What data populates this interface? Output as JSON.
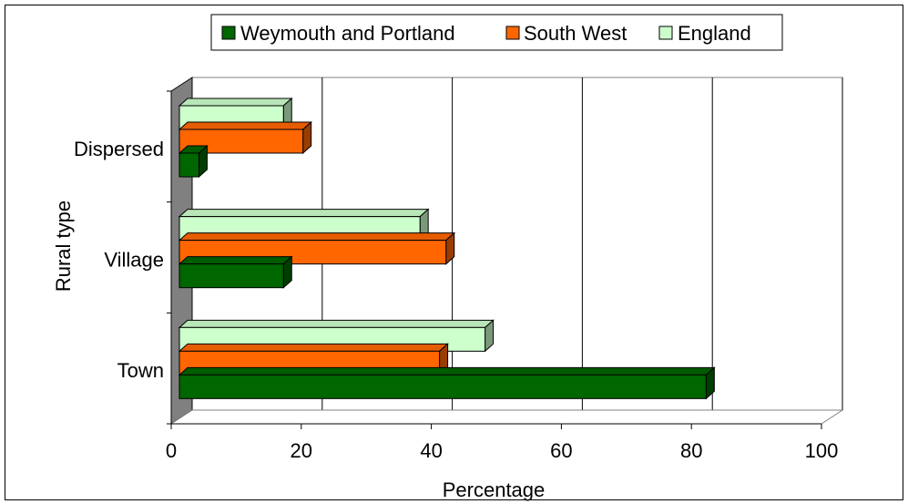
{
  "chart_data": {
    "type": "bar",
    "orientation": "horizontal",
    "three_d": true,
    "categories": [
      "Town",
      "Village",
      "Dispersed"
    ],
    "series": [
      {
        "name": "Weymouth and Portland",
        "values": [
          81,
          16,
          3
        ],
        "color": "#006600"
      },
      {
        "name": "South West",
        "values": [
          40,
          41,
          19
        ],
        "color": "#ff6600"
      },
      {
        "name": "England",
        "values": [
          47,
          37,
          16
        ],
        "color": "#ccffcc"
      }
    ],
    "x_ticks": [
      "0",
      "20",
      "40",
      "60",
      "80",
      "100"
    ],
    "xlim": [
      0,
      100
    ],
    "xlabel": "Percentage",
    "ylabel": "Rural type",
    "grid": "vertical",
    "legend_position": "top"
  }
}
